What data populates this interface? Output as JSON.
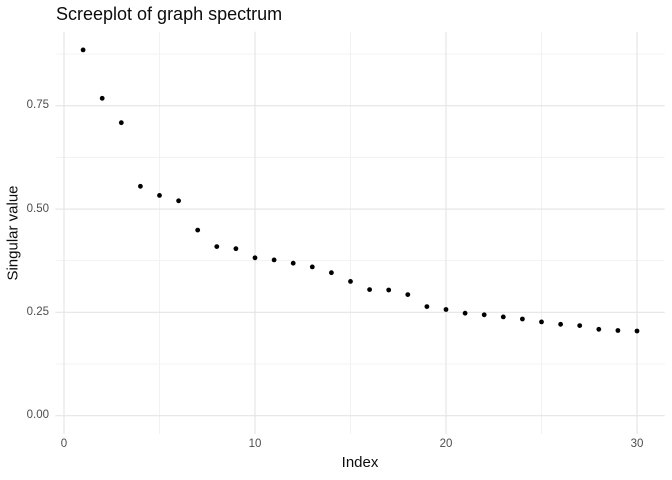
{
  "chart_data": {
    "type": "scatter",
    "title": "Screeplot of graph spectrum",
    "xlabel": "Index",
    "ylabel": "Singular value",
    "x": [
      1,
      2,
      3,
      4,
      5,
      6,
      7,
      8,
      9,
      10,
      11,
      12,
      13,
      14,
      15,
      16,
      17,
      18,
      19,
      20,
      21,
      22,
      23,
      24,
      25,
      26,
      27,
      28,
      29,
      30
    ],
    "values": [
      0.885,
      0.768,
      0.709,
      0.555,
      0.533,
      0.52,
      0.449,
      0.409,
      0.404,
      0.382,
      0.377,
      0.369,
      0.36,
      0.346,
      0.325,
      0.305,
      0.304,
      0.293,
      0.264,
      0.257,
      0.248,
      0.244,
      0.239,
      0.234,
      0.227,
      0.221,
      0.218,
      0.209,
      0.206,
      0.205
    ],
    "xlim": [
      -0.45,
      31.45
    ],
    "ylim": [
      -0.0443,
      0.9293
    ],
    "x_ticks": {
      "values": [
        0,
        10,
        20,
        30
      ],
      "labels": [
        "0",
        "10",
        "20",
        "30"
      ]
    },
    "y_ticks": {
      "values": [
        0.0,
        0.25,
        0.5,
        0.75
      ],
      "labels": [
        "0.00",
        "0.25",
        "0.50",
        "0.75"
      ]
    },
    "x_minor": [
      5,
      15,
      25
    ],
    "y_minor": [
      0.125,
      0.375,
      0.625,
      0.875
    ],
    "grid": true,
    "legend_position": "none",
    "colors": {
      "point": "#000000",
      "grid_major": "#e4e4e4",
      "grid_minor": "#f1f1f1",
      "background": "#ffffff",
      "tick_label": "#4d4d4d",
      "title_text": "#0d0d0d"
    }
  }
}
